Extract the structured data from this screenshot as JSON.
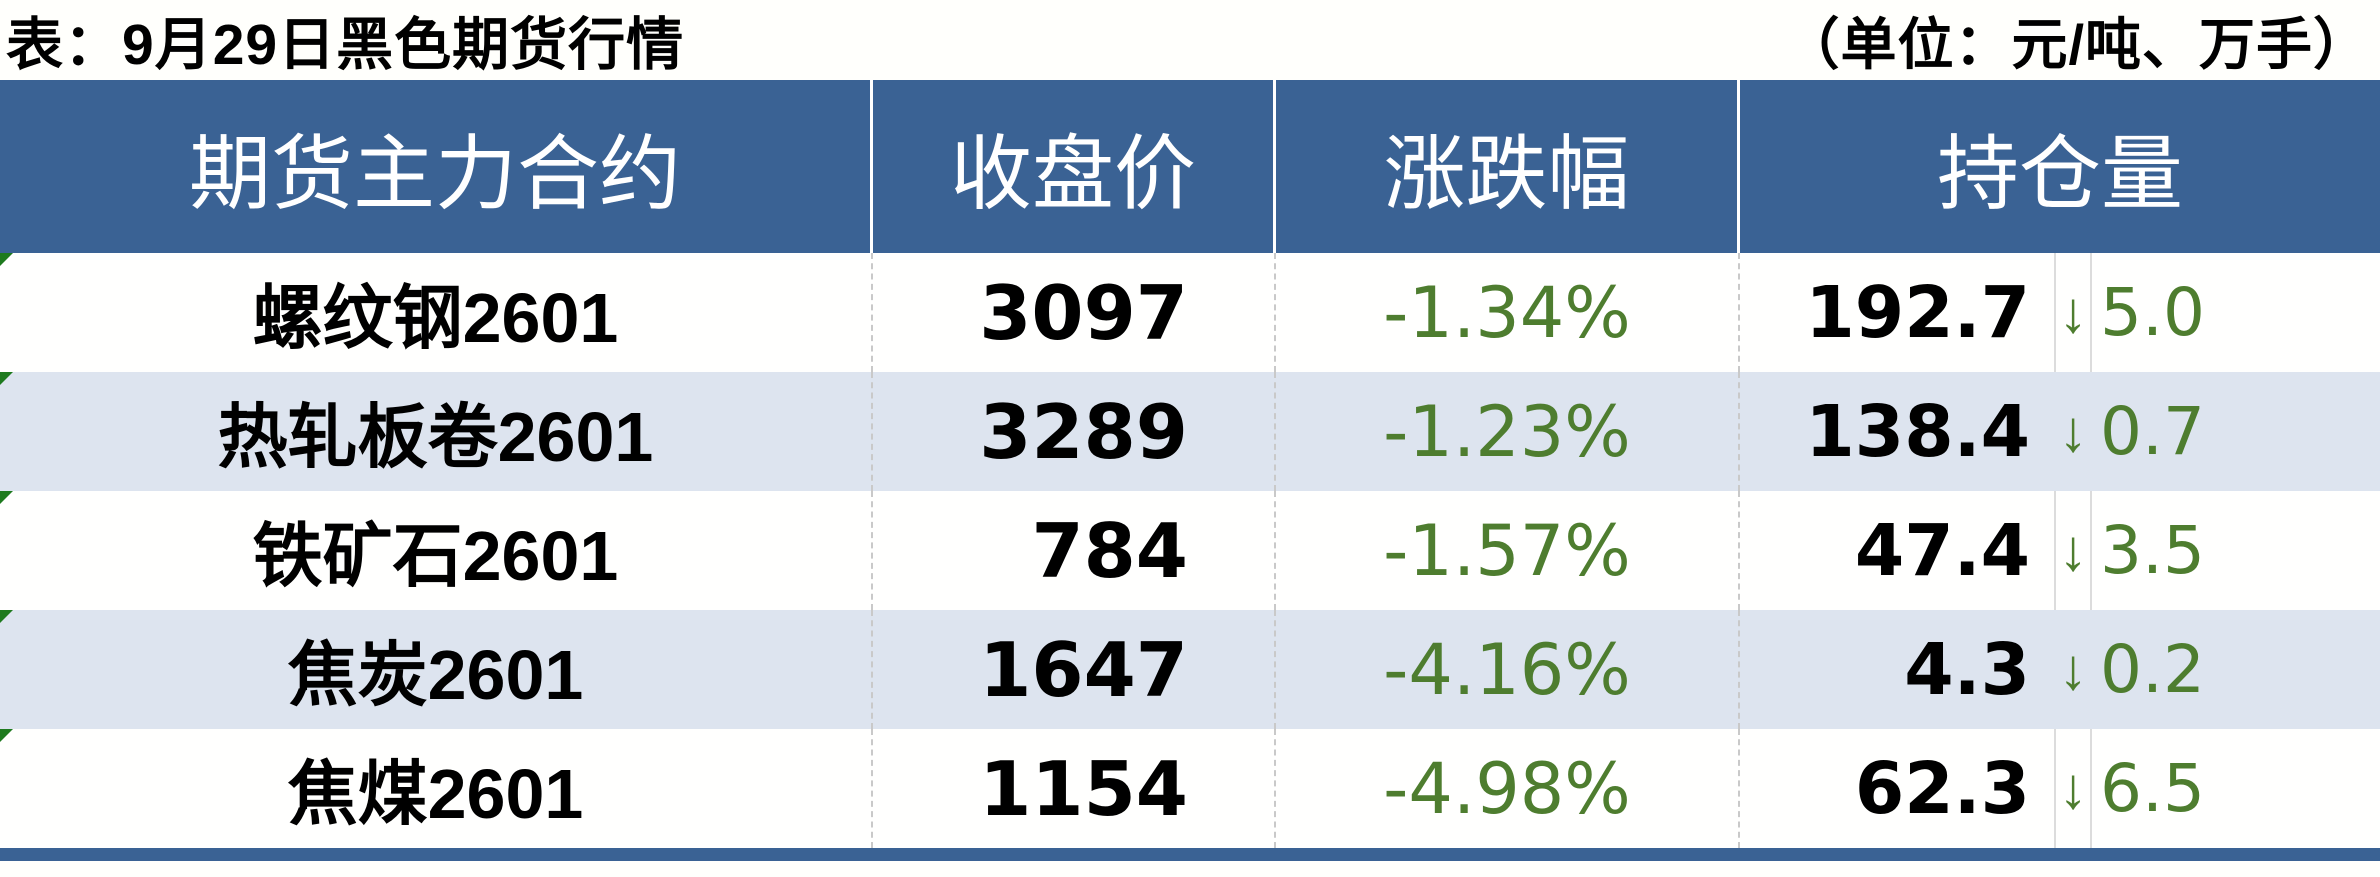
{
  "title": "表：9月29日黑色期货行情",
  "unit_note": "（单位：元/吨、万手）",
  "table": {
    "columns": [
      "期货主力合约",
      "收盘价",
      "涨跌幅",
      "持仓量"
    ],
    "rows": [
      {
        "contract": "螺纹钢2601",
        "close": "3097",
        "change": "-1.34%",
        "oi": "192.7",
        "arrow": "↓",
        "oi_change": "5.0"
      },
      {
        "contract": "热轧板卷2601",
        "close": "3289",
        "change": "-1.23%",
        "oi": "138.4",
        "arrow": "↓",
        "oi_change": "0.7"
      },
      {
        "contract": "铁矿石2601",
        "close": "784",
        "change": "-1.57%",
        "oi": "47.4",
        "arrow": "↓",
        "oi_change": "3.5"
      },
      {
        "contract": "焦炭2601",
        "close": "1647",
        "change": "-4.16%",
        "oi": "4.3",
        "arrow": "↓",
        "oi_change": "0.2"
      },
      {
        "contract": "焦煤2601",
        "close": "1154",
        "change": "-4.98%",
        "oi": "62.3",
        "arrow": "↓",
        "oi_change": "6.5"
      }
    ]
  },
  "colors": {
    "header_background": "#3A6294",
    "bottom_border": "#3A6294",
    "alternate_row": "#DDE4EF",
    "negative_green": "#4E7D2F",
    "corner_marker_green": "#1E7A1E",
    "header_text": "#FFFFFF",
    "body_text": "#000000"
  }
}
